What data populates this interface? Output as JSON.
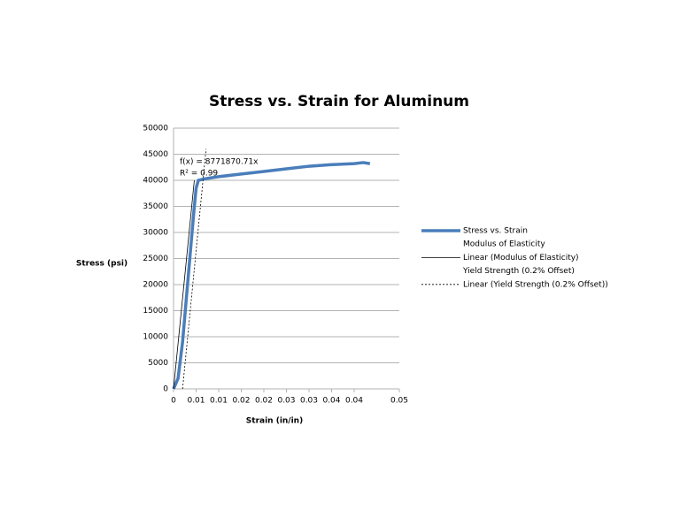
{
  "chart_data": {
    "type": "line",
    "title": "Stress vs. Strain for Aluminum",
    "x_label": "Strain (in/in)",
    "y_label": "Stress (psi)",
    "annotations": [
      "f(x) = 8771870.71x",
      "R² = 0.99"
    ],
    "xlim": [
      0,
      0.05
    ],
    "ylim": [
      0,
      50000
    ],
    "xticks": [
      0,
      {
        "value": 0.005,
        "label": "0.01"
      },
      0.01,
      {
        "value": 0.015,
        "label": "0.02"
      },
      0.02,
      {
        "value": 0.025,
        "label": "0.03"
      },
      0.03,
      {
        "value": 0.035,
        "label": "0.04"
      },
      0.04,
      0.05
    ],
    "yticks": [
      0,
      5000,
      10000,
      15000,
      20000,
      25000,
      30000,
      35000,
      40000,
      45000,
      50000
    ],
    "grid": true,
    "legend": "right",
    "series": [
      {
        "name": "Stress vs. Strain",
        "color": "#4a7ebb",
        "x": [
          0,
          0.001,
          0.002,
          0.003,
          0.004,
          0.0045,
          0.005,
          0.0055,
          0.007,
          0.01,
          0.015,
          0.02,
          0.025,
          0.03,
          0.035,
          0.04,
          0.042,
          0.0435
        ],
        "values": [
          0,
          2000,
          9000,
          19000,
          29000,
          34000,
          38500,
          40000,
          40300,
          40700,
          41200,
          41700,
          42200,
          42700,
          43000,
          43200,
          43400,
          43200
        ]
      },
      {
        "name": "Modulus of Elasticity",
        "x": [],
        "values": []
      },
      {
        "name": "Linear (Modulus of Elasticity)",
        "color": "#000000",
        "x": [
          0,
          0.0046
        ],
        "values": [
          0,
          40000
        ]
      },
      {
        "name": "Yield Strength (0.2% Offset)",
        "x": [],
        "values": []
      },
      {
        "name": "Linear (Yield Strength (0.2% Offset))",
        "color": "#000000",
        "dashed": true,
        "x": [
          0.002,
          0.0072
        ],
        "values": [
          0,
          46000
        ]
      }
    ]
  }
}
